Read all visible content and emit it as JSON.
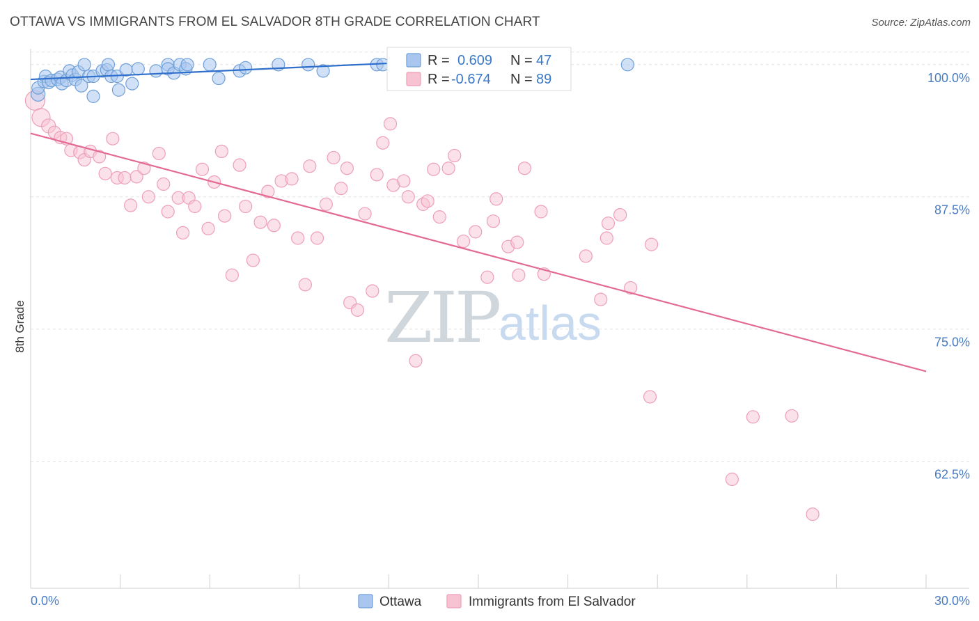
{
  "header": {
    "title": "OTTAWA VS IMMIGRANTS FROM EL SALVADOR 8TH GRADE CORRELATION CHART",
    "source": "Source: ZipAtlas.com"
  },
  "watermark": {
    "part1": "ZIP",
    "part2": "atlas"
  },
  "legend": {
    "r_label": "R =",
    "n_label": "N =",
    "rows": [
      {
        "r": "0.609",
        "n": "47",
        "color": "#6fa1e0"
      },
      {
        "r": "-0.674",
        "n": "89",
        "color": "#f2a7bf"
      }
    ]
  },
  "colors": {
    "ottawa_fill": "#a9c7ee",
    "ottawa_stroke": "#6f9fd8",
    "ottawa_line": "#2f6fcc",
    "elsal_fill": "#f7c3d3",
    "elsal_stroke": "#ee9fb8",
    "elsal_line": "#e36a95",
    "tick_label": "#4a7cc4"
  },
  "chart_data": {
    "type": "scatter",
    "title": "OTTAWA VS IMMIGRANTS FROM EL SALVADOR 8TH GRADE CORRELATION CHART",
    "ylabel": "8th Grade",
    "xlabel": "",
    "xlim": [
      0,
      30
    ],
    "ylim": [
      50.5,
      101.5
    ],
    "x_tick_labels": [
      "0.0%",
      "30.0%"
    ],
    "y_ticks": [
      62.5,
      75.0,
      87.5,
      100.0
    ],
    "y_tick_labels": [
      "62.5%",
      "75.0%",
      "87.5%",
      "100.0%"
    ],
    "grid": "horizontal dashed",
    "legend_position": "top-center",
    "series": [
      {
        "name": "Ottawa",
        "r": 0.609,
        "n": 47,
        "trend": {
          "x": [
            0,
            12.6
          ],
          "y": [
            98.6,
            100.2
          ]
        },
        "points": [
          {
            "x": 0.25,
            "y": 97.2,
            "s": 10
          },
          {
            "x": 0.25,
            "y": 97.8,
            "s": 9
          },
          {
            "x": 0.45,
            "y": 98.4,
            "s": 9
          },
          {
            "x": 0.5,
            "y": 98.9,
            "s": 9
          },
          {
            "x": 0.6,
            "y": 98.3,
            "s": 9
          },
          {
            "x": 0.7,
            "y": 98.5,
            "s": 9
          },
          {
            "x": 0.9,
            "y": 98.6,
            "s": 9
          },
          {
            "x": 1.0,
            "y": 98.8,
            "s": 9
          },
          {
            "x": 1.05,
            "y": 98.2,
            "s": 9
          },
          {
            "x": 1.2,
            "y": 98.5,
            "s": 9
          },
          {
            "x": 1.3,
            "y": 99.4,
            "s": 9
          },
          {
            "x": 1.4,
            "y": 99.0,
            "s": 9
          },
          {
            "x": 1.5,
            "y": 98.6,
            "s": 9
          },
          {
            "x": 1.6,
            "y": 99.3,
            "s": 9
          },
          {
            "x": 1.7,
            "y": 98.0,
            "s": 9
          },
          {
            "x": 1.8,
            "y": 100.0,
            "s": 9
          },
          {
            "x": 1.95,
            "y": 98.9,
            "s": 9
          },
          {
            "x": 2.1,
            "y": 98.9,
            "s": 9
          },
          {
            "x": 2.1,
            "y": 97.0,
            "s": 9
          },
          {
            "x": 2.4,
            "y": 99.4,
            "s": 9
          },
          {
            "x": 2.55,
            "y": 99.5,
            "s": 9
          },
          {
            "x": 2.6,
            "y": 100.0,
            "s": 9
          },
          {
            "x": 2.7,
            "y": 98.9,
            "s": 9
          },
          {
            "x": 2.9,
            "y": 98.9,
            "s": 9
          },
          {
            "x": 2.95,
            "y": 97.6,
            "s": 9
          },
          {
            "x": 3.2,
            "y": 99.5,
            "s": 9
          },
          {
            "x": 3.4,
            "y": 98.2,
            "s": 9
          },
          {
            "x": 3.6,
            "y": 99.6,
            "s": 9
          },
          {
            "x": 4.2,
            "y": 99.4,
            "s": 9
          },
          {
            "x": 4.6,
            "y": 100.0,
            "s": 9
          },
          {
            "x": 4.6,
            "y": 99.6,
            "s": 9
          },
          {
            "x": 4.8,
            "y": 99.2,
            "s": 9
          },
          {
            "x": 5.0,
            "y": 100.0,
            "s": 9
          },
          {
            "x": 5.2,
            "y": 99.6,
            "s": 9
          },
          {
            "x": 5.25,
            "y": 100.0,
            "s": 9
          },
          {
            "x": 6.0,
            "y": 100.0,
            "s": 9
          },
          {
            "x": 6.3,
            "y": 98.7,
            "s": 9
          },
          {
            "x": 7.0,
            "y": 99.4,
            "s": 9
          },
          {
            "x": 7.2,
            "y": 99.7,
            "s": 9
          },
          {
            "x": 8.3,
            "y": 100.0,
            "s": 9
          },
          {
            "x": 9.3,
            "y": 100.0,
            "s": 9
          },
          {
            "x": 9.8,
            "y": 99.4,
            "s": 9
          },
          {
            "x": 11.6,
            "y": 100.0,
            "s": 9
          },
          {
            "x": 11.8,
            "y": 100.0,
            "s": 9
          },
          {
            "x": 12.4,
            "y": 100.0,
            "s": 9
          },
          {
            "x": 12.7,
            "y": 100.0,
            "s": 9
          },
          {
            "x": 20.0,
            "y": 100.0,
            "s": 9
          }
        ]
      },
      {
        "name": "Immigrants from El Salvador",
        "r": -0.674,
        "n": 89,
        "trend": {
          "x": [
            0,
            30
          ],
          "y": [
            93.5,
            71.0
          ]
        },
        "points": [
          {
            "x": 0.15,
            "y": 96.6,
            "s": 14
          },
          {
            "x": 0.35,
            "y": 95.0,
            "s": 13
          },
          {
            "x": 0.6,
            "y": 94.2,
            "s": 10
          },
          {
            "x": 0.8,
            "y": 93.6,
            "s": 9
          },
          {
            "x": 1.0,
            "y": 93.1,
            "s": 9
          },
          {
            "x": 1.2,
            "y": 93.0,
            "s": 9
          },
          {
            "x": 1.35,
            "y": 91.9,
            "s": 9
          },
          {
            "x": 1.65,
            "y": 91.7,
            "s": 9
          },
          {
            "x": 1.8,
            "y": 91.0,
            "s": 9
          },
          {
            "x": 2.0,
            "y": 91.8,
            "s": 9
          },
          {
            "x": 2.3,
            "y": 91.3,
            "s": 9
          },
          {
            "x": 2.5,
            "y": 89.7,
            "s": 9
          },
          {
            "x": 2.75,
            "y": 93.0,
            "s": 9
          },
          {
            "x": 2.9,
            "y": 89.3,
            "s": 9
          },
          {
            "x": 3.15,
            "y": 89.3,
            "s": 9
          },
          {
            "x": 3.35,
            "y": 86.7,
            "s": 9
          },
          {
            "x": 3.55,
            "y": 89.4,
            "s": 9
          },
          {
            "x": 3.8,
            "y": 90.2,
            "s": 9
          },
          {
            "x": 3.95,
            "y": 87.5,
            "s": 9
          },
          {
            "x": 4.3,
            "y": 91.6,
            "s": 9
          },
          {
            "x": 4.45,
            "y": 88.7,
            "s": 9
          },
          {
            "x": 4.6,
            "y": 86.1,
            "s": 9
          },
          {
            "x": 4.95,
            "y": 87.4,
            "s": 9
          },
          {
            "x": 5.1,
            "y": 84.1,
            "s": 9
          },
          {
            "x": 5.3,
            "y": 87.4,
            "s": 9
          },
          {
            "x": 5.5,
            "y": 86.6,
            "s": 9
          },
          {
            "x": 5.75,
            "y": 90.1,
            "s": 9
          },
          {
            "x": 5.95,
            "y": 84.5,
            "s": 9
          },
          {
            "x": 6.15,
            "y": 88.9,
            "s": 9
          },
          {
            "x": 6.4,
            "y": 91.8,
            "s": 9
          },
          {
            "x": 6.5,
            "y": 85.7,
            "s": 9
          },
          {
            "x": 6.75,
            "y": 80.1,
            "s": 9
          },
          {
            "x": 7.0,
            "y": 90.5,
            "s": 9
          },
          {
            "x": 7.2,
            "y": 86.6,
            "s": 9
          },
          {
            "x": 7.45,
            "y": 81.5,
            "s": 9
          },
          {
            "x": 7.7,
            "y": 85.1,
            "s": 9
          },
          {
            "x": 7.95,
            "y": 88.0,
            "s": 9
          },
          {
            "x": 8.15,
            "y": 84.8,
            "s": 9
          },
          {
            "x": 8.4,
            "y": 89.0,
            "s": 9
          },
          {
            "x": 8.75,
            "y": 89.2,
            "s": 9
          },
          {
            "x": 8.95,
            "y": 83.6,
            "s": 9
          },
          {
            "x": 9.2,
            "y": 79.2,
            "s": 9
          },
          {
            "x": 9.35,
            "y": 90.4,
            "s": 9
          },
          {
            "x": 9.6,
            "y": 83.6,
            "s": 9
          },
          {
            "x": 9.9,
            "y": 86.8,
            "s": 9
          },
          {
            "x": 10.15,
            "y": 91.2,
            "s": 9
          },
          {
            "x": 10.4,
            "y": 88.3,
            "s": 9
          },
          {
            "x": 10.6,
            "y": 90.2,
            "s": 9
          },
          {
            "x": 10.7,
            "y": 77.5,
            "s": 9
          },
          {
            "x": 10.95,
            "y": 76.8,
            "s": 9
          },
          {
            "x": 11.2,
            "y": 85.9,
            "s": 9
          },
          {
            "x": 11.45,
            "y": 78.6,
            "s": 9
          },
          {
            "x": 11.6,
            "y": 89.6,
            "s": 9
          },
          {
            "x": 11.8,
            "y": 92.6,
            "s": 9
          },
          {
            "x": 12.05,
            "y": 94.4,
            "s": 9
          },
          {
            "x": 12.15,
            "y": 88.6,
            "s": 9
          },
          {
            "x": 12.5,
            "y": 89.0,
            "s": 9
          },
          {
            "x": 12.65,
            "y": 87.5,
            "s": 9
          },
          {
            "x": 12.9,
            "y": 72.0,
            "s": 9
          },
          {
            "x": 13.15,
            "y": 86.8,
            "s": 9
          },
          {
            "x": 13.3,
            "y": 87.1,
            "s": 9
          },
          {
            "x": 13.5,
            "y": 90.1,
            "s": 9
          },
          {
            "x": 13.7,
            "y": 85.6,
            "s": 9
          },
          {
            "x": 14.0,
            "y": 90.2,
            "s": 9
          },
          {
            "x": 14.2,
            "y": 91.4,
            "s": 9
          },
          {
            "x": 14.5,
            "y": 83.3,
            "s": 9
          },
          {
            "x": 14.9,
            "y": 84.2,
            "s": 9
          },
          {
            "x": 15.3,
            "y": 79.9,
            "s": 9
          },
          {
            "x": 15.5,
            "y": 85.2,
            "s": 9
          },
          {
            "x": 15.6,
            "y": 87.3,
            "s": 9
          },
          {
            "x": 16.0,
            "y": 82.8,
            "s": 9
          },
          {
            "x": 16.3,
            "y": 83.2,
            "s": 9
          },
          {
            "x": 16.35,
            "y": 80.1,
            "s": 9
          },
          {
            "x": 16.55,
            "y": 90.2,
            "s": 9
          },
          {
            "x": 17.1,
            "y": 86.1,
            "s": 9
          },
          {
            "x": 17.2,
            "y": 80.2,
            "s": 9
          },
          {
            "x": 17.4,
            "y": 98.2,
            "s": 9
          },
          {
            "x": 18.6,
            "y": 81.9,
            "s": 9
          },
          {
            "x": 19.1,
            "y": 77.8,
            "s": 9
          },
          {
            "x": 19.3,
            "y": 83.6,
            "s": 9
          },
          {
            "x": 19.35,
            "y": 85.0,
            "s": 9
          },
          {
            "x": 19.75,
            "y": 85.8,
            "s": 9
          },
          {
            "x": 20.1,
            "y": 78.9,
            "s": 9
          },
          {
            "x": 20.8,
            "y": 83.0,
            "s": 9
          },
          {
            "x": 20.75,
            "y": 68.6,
            "s": 9
          },
          {
            "x": 23.5,
            "y": 60.8,
            "s": 9
          },
          {
            "x": 24.2,
            "y": 66.7,
            "s": 9
          },
          {
            "x": 25.5,
            "y": 66.8,
            "s": 9
          },
          {
            "x": 26.2,
            "y": 57.5,
            "s": 9
          }
        ]
      }
    ]
  }
}
